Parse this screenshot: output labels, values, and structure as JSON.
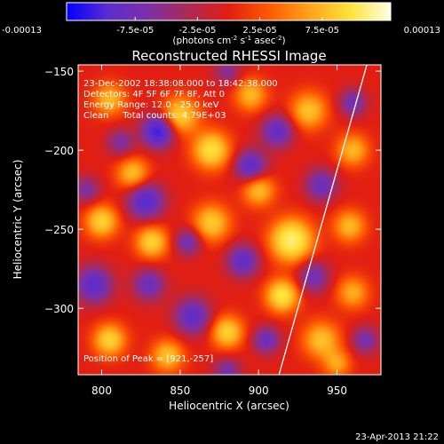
{
  "colorbar": {
    "ticks": [
      "-0.00013",
      "-7.5e-05",
      "-2.5e-05",
      "2.5e-05",
      "7.5e-05",
      "0.00013"
    ],
    "tick_values": [
      -0.00013,
      -7.5e-05,
      -2.5e-05,
      2.5e-05,
      7.5e-05,
      0.00013
    ],
    "range": [
      -0.00013,
      0.00013
    ],
    "units_text": "(photons cm",
    "units_exp1": "-2",
    "units_s": " s",
    "units_exp2": "-1",
    "units_asec": " asec",
    "units_exp3": "-2",
    "units_close": ")",
    "colors": [
      "#0000ff",
      "#5b2bd0",
      "#7d30a8",
      "#ac2a55",
      "#e21e12",
      "#ff5a00",
      "#ffa41a",
      "#ffe23a",
      "#ffffe8"
    ]
  },
  "chart_data": {
    "type": "heatmap",
    "title": "Reconstructed RHESSI Image",
    "xlabel": "Heliocentric X (arcsec)",
    "ylabel": "Heliocentric Y (arcsec)",
    "xlim": [
      785,
      978
    ],
    "ylim": [
      -342,
      -146
    ],
    "x_ticks": [
      800,
      850,
      900,
      950
    ],
    "y_ticks": [
      -150,
      -200,
      -250,
      -300
    ],
    "x_tick_labels": [
      "800",
      "850",
      "900",
      "950"
    ],
    "y_tick_labels": [
      "−150",
      "−200",
      "−250",
      "−300"
    ],
    "annotations": [
      "23-Dec-2002 18:38:08.000 to 18:42:38.000",
      "Detectors: 4F 5F 6F 7F 8F, Att 0",
      "Energy Range: 12.0 - 25.0 keV",
      "Clean     Total counts: 4.79E+03"
    ],
    "peak_label": "Position of Peak = [921,-257]",
    "peak": [
      921,
      -257
    ],
    "limb_line": [
      [
        913,
        -342
      ],
      [
        969,
        -146
      ]
    ],
    "blobs": [
      [
        921,
        -257,
        9,
        1.0
      ],
      [
        915,
        -292,
        7,
        0.85
      ],
      [
        850,
        -178,
        8,
        0.7
      ],
      [
        870,
        -200,
        8,
        0.8
      ],
      [
        820,
        -215,
        7,
        0.6
      ],
      [
        800,
        -245,
        7,
        0.7
      ],
      [
        832,
        -258,
        7,
        0.7
      ],
      [
        870,
        -246,
        8,
        0.65
      ],
      [
        805,
        -168,
        7,
        0.55
      ],
      [
        880,
        -315,
        7,
        0.7
      ],
      [
        842,
        -330,
        7,
        0.6
      ],
      [
        805,
        -320,
        7,
        0.7
      ],
      [
        895,
        -165,
        7,
        0.55
      ],
      [
        900,
        -225,
        7,
        0.6
      ],
      [
        940,
        -320,
        8,
        0.6
      ],
      [
        958,
        -248,
        7,
        0.55
      ],
      [
        960,
        -200,
        7,
        0.55
      ],
      [
        932,
        -175,
        8,
        0.6
      ],
      [
        960,
        -290,
        7,
        0.5
      ],
      [
        950,
        -335,
        6,
        0.45
      ],
      [
        836,
        -188,
        7,
        -1.0
      ],
      [
        828,
        -232,
        8,
        -0.8
      ],
      [
        795,
        -285,
        8,
        -0.75
      ],
      [
        858,
        -305,
        8,
        -0.7
      ],
      [
        890,
        -270,
        7,
        -0.7
      ],
      [
        895,
        -210,
        7,
        -0.75
      ],
      [
        912,
        -188,
        7,
        -0.7
      ],
      [
        855,
        -258,
        6,
        -0.55
      ],
      [
        940,
        -222,
        7,
        -0.6
      ],
      [
        935,
        -280,
        7,
        -0.55
      ],
      [
        960,
        -170,
        6,
        -0.55
      ],
      [
        905,
        -320,
        6,
        -0.6
      ],
      [
        830,
        -285,
        7,
        -0.6
      ],
      [
        880,
        -340,
        6,
        -0.5
      ],
      [
        812,
        -195,
        6,
        -0.45
      ],
      [
        968,
        -320,
        6,
        -0.5
      ],
      [
        880,
        -150,
        6,
        -0.4
      ],
      [
        790,
        -225,
        6,
        -0.45
      ]
    ]
  },
  "footer": {
    "timestamp": "23-Apr-2013 21:22"
  }
}
